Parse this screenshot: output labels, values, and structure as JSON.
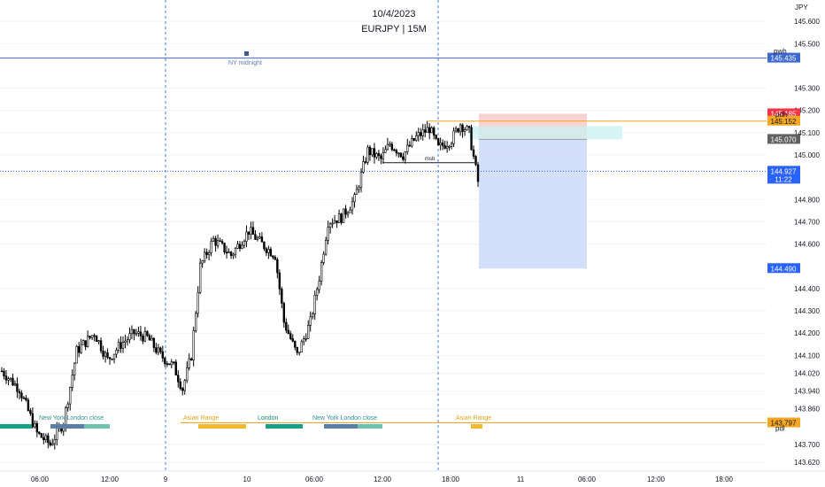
{
  "header": {
    "date": "10/4/2023",
    "subtitle": "EURJPY | 15M"
  },
  "colors": {
    "up_candle": "#ffffff",
    "down_candle": "#000000",
    "candle_border": "#000000",
    "session_line_blue": "#4a7cd6",
    "pwh_line": "#3d6ad1",
    "level_orange": "#f5a623",
    "current_price": "#2962ff",
    "stop_zone": "#f7c7c7",
    "target_zone": "#cfdcfb",
    "cyan_zone": "#c9f1f2",
    "gray_label": "#616161",
    "red_label": "#f23645",
    "grid": "#f0f3fa"
  },
  "chart_data": {
    "type": "candlestick",
    "symbol": "EURJPY",
    "timeframe": "15M",
    "currency": "JPY",
    "y_axis_ticks": [
      "145.600",
      "145.500",
      "145.300",
      "145.200",
      "145.100",
      "145.000",
      "144.800",
      "144.700",
      "144.600",
      "144.400",
      "144.300",
      "144.200",
      "144.100",
      "144.020",
      "143.940",
      "143.860",
      "143.700",
      "143.620"
    ],
    "x_axis_ticks": [
      "06:00",
      "12:00",
      "9",
      "10",
      "06:00",
      "12:00",
      "18:00",
      "11",
      "06:00",
      "12:00",
      "18:00"
    ],
    "levels": {
      "pwh": {
        "label": "pwh",
        "price": "145.435"
      },
      "pdh": {
        "label": "pdh",
        "price": "145.152"
      },
      "pdl": {
        "label": "pdl",
        "price": "143.797"
      },
      "stop": "145.185",
      "entry": "145.070",
      "target": "144.490",
      "last": "144.927",
      "countdown": "11:22"
    },
    "annotations": {
      "ny_midnight": "NY midnight",
      "msb": "msb",
      "ny_london_close": "New York London close",
      "asian_range": "Asian Range",
      "london": "London"
    },
    "price_path_anchors": [
      {
        "t": 0,
        "p": 144.03
      },
      {
        "t": 8,
        "p": 143.95
      },
      {
        "t": 16,
        "p": 143.75
      },
      {
        "t": 22,
        "p": 143.7
      },
      {
        "t": 28,
        "p": 143.8
      },
      {
        "t": 34,
        "p": 144.12
      },
      {
        "t": 42,
        "p": 144.2
      },
      {
        "t": 48,
        "p": 144.08
      },
      {
        "t": 54,
        "p": 144.15
      },
      {
        "t": 60,
        "p": 144.2
      },
      {
        "t": 66,
        "p": 144.18
      },
      {
        "t": 72,
        "p": 144.1
      },
      {
        "t": 78,
        "p": 144.05
      },
      {
        "t": 82,
        "p": 143.95
      },
      {
        "t": 86,
        "p": 144.1
      },
      {
        "t": 90,
        "p": 144.5
      },
      {
        "t": 96,
        "p": 144.62
      },
      {
        "t": 104,
        "p": 144.55
      },
      {
        "t": 112,
        "p": 144.66
      },
      {
        "t": 118,
        "p": 144.6
      },
      {
        "t": 124,
        "p": 144.55
      },
      {
        "t": 128,
        "p": 144.25
      },
      {
        "t": 134,
        "p": 144.1
      },
      {
        "t": 140,
        "p": 144.25
      },
      {
        "t": 144,
        "p": 144.45
      },
      {
        "t": 148,
        "p": 144.7
      },
      {
        "t": 154,
        "p": 144.72
      },
      {
        "t": 160,
        "p": 144.8
      },
      {
        "t": 166,
        "p": 145.02
      },
      {
        "t": 172,
        "p": 144.98
      },
      {
        "t": 176,
        "p": 145.05
      },
      {
        "t": 182,
        "p": 145.0
      },
      {
        "t": 188,
        "p": 145.08
      },
      {
        "t": 194,
        "p": 145.12
      },
      {
        "t": 198,
        "p": 145.03
      },
      {
        "t": 204,
        "p": 145.07
      },
      {
        "t": 208,
        "p": 145.14
      },
      {
        "t": 212,
        "p": 145.1
      },
      {
        "t": 216,
        "p": 144.88
      }
    ]
  }
}
